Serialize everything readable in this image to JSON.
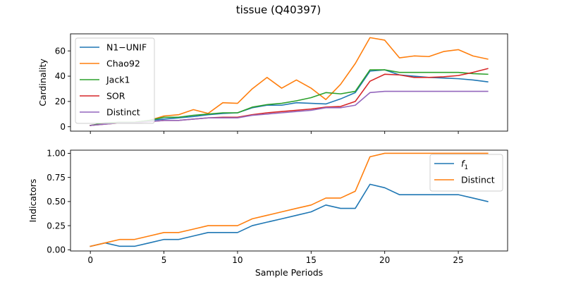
{
  "figure": {
    "title": "tissue (Q40397)"
  },
  "chart_data": [
    {
      "type": "line",
      "ylabel": "Cardinality",
      "xlabel": "",
      "xlim": [
        -1.35,
        28.35
      ],
      "ylim": [
        -3.5,
        73.5
      ],
      "x_ticks": [
        0,
        5,
        10,
        15,
        20,
        25
      ],
      "x_tick_labels_visible": false,
      "y_ticks": [
        0,
        20,
        40,
        60
      ],
      "y_tick_labels": [
        "0",
        "20",
        "40",
        "60"
      ],
      "legend": "upper-left",
      "grid": false,
      "x": [
        0,
        1,
        2,
        3,
        4,
        5,
        6,
        7,
        8,
        9,
        10,
        11,
        12,
        13,
        14,
        15,
        16,
        17,
        18,
        19,
        20,
        21,
        22,
        23,
        24,
        25,
        26,
        27
      ],
      "series": [
        {
          "name": "N1−UNIF",
          "color": "#1f77b4",
          "values": [
            1,
            2.5,
            3.5,
            3.5,
            5,
            6,
            7,
            8,
            9.5,
            10.5,
            11,
            15,
            17,
            17,
            19,
            18.5,
            18,
            22,
            27,
            44,
            45,
            41,
            40,
            39,
            38.5,
            38,
            37,
            35.5
          ]
        },
        {
          "name": "Chao92",
          "color": "#ff7f0e",
          "values": [
            1,
            2.5,
            3.5,
            3.5,
            5,
            8.5,
            9.5,
            13.5,
            10.5,
            19,
            18.5,
            30,
            39,
            30.5,
            37,
            30.5,
            21.5,
            33.5,
            50,
            70.5,
            68.5,
            54.5,
            56,
            55.5,
            59.5,
            61,
            56,
            53.5
          ]
        },
        {
          "name": "Jack1",
          "color": "#2ca02c",
          "values": [
            1,
            3,
            3.5,
            3.5,
            5,
            7.5,
            7.5,
            9,
            10,
            11,
            11,
            15.5,
            17.5,
            18.5,
            20.5,
            23,
            27,
            26,
            28,
            45,
            45,
            43,
            43,
            43,
            43,
            43,
            42,
            41.5
          ]
        },
        {
          "name": "SOR",
          "color": "#d62728",
          "values": [
            1,
            2,
            3,
            3,
            4,
            5,
            5,
            6,
            7,
            7.5,
            7.5,
            9.5,
            11,
            12,
            13,
            14,
            15.5,
            16,
            20,
            36,
            41.5,
            41,
            39,
            39,
            39.5,
            40.5,
            43,
            46
          ]
        },
        {
          "name": "Distinct",
          "color": "#9467bd",
          "values": [
            1,
            2,
            3,
            3,
            4,
            5,
            5,
            6,
            7,
            7,
            7,
            9,
            10,
            11,
            12,
            13,
            15,
            15,
            17,
            27,
            28,
            28,
            28,
            28,
            28,
            28,
            28,
            28
          ]
        }
      ]
    },
    {
      "type": "line",
      "ylabel": "Indicators",
      "xlabel": "Sample Periods",
      "xlim": [
        -1.35,
        28.35
      ],
      "ylim": [
        -0.0125,
        1.0325
      ],
      "x_ticks": [
        0,
        5,
        10,
        15,
        20,
        25
      ],
      "x_tick_labels": [
        "0",
        "5",
        "10",
        "15",
        "20",
        "25"
      ],
      "y_ticks": [
        0,
        0.25,
        0.5,
        0.75,
        1.0
      ],
      "y_tick_labels": [
        "0.00",
        "0.25",
        "0.50",
        "0.75",
        "1.00"
      ],
      "legend": "upper-right",
      "grid": false,
      "x": [
        0,
        1,
        2,
        3,
        4,
        5,
        6,
        7,
        8,
        9,
        10,
        11,
        12,
        13,
        14,
        15,
        16,
        17,
        18,
        19,
        20,
        21,
        22,
        23,
        24,
        25,
        26,
        27
      ],
      "series": [
        {
          "name": "f",
          "name_subscript": "1",
          "color": "#1f77b4",
          "values": [
            0.036,
            0.071,
            0.036,
            0.036,
            0.071,
            0.107,
            0.107,
            0.143,
            0.179,
            0.179,
            0.179,
            0.25,
            0.286,
            0.321,
            0.357,
            0.393,
            0.464,
            0.429,
            0.429,
            0.679,
            0.643,
            0.571,
            0.571,
            0.571,
            0.571,
            0.571,
            0.536,
            0.5
          ]
        },
        {
          "name": "Distinct",
          "color": "#ff7f0e",
          "values": [
            0.036,
            0.071,
            0.107,
            0.107,
            0.143,
            0.179,
            0.179,
            0.214,
            0.25,
            0.25,
            0.25,
            0.321,
            0.357,
            0.393,
            0.429,
            0.464,
            0.536,
            0.536,
            0.607,
            0.964,
            1.0,
            1.0,
            1.0,
            1.0,
            1.0,
            1.0,
            1.0,
            1.0
          ]
        }
      ]
    }
  ]
}
